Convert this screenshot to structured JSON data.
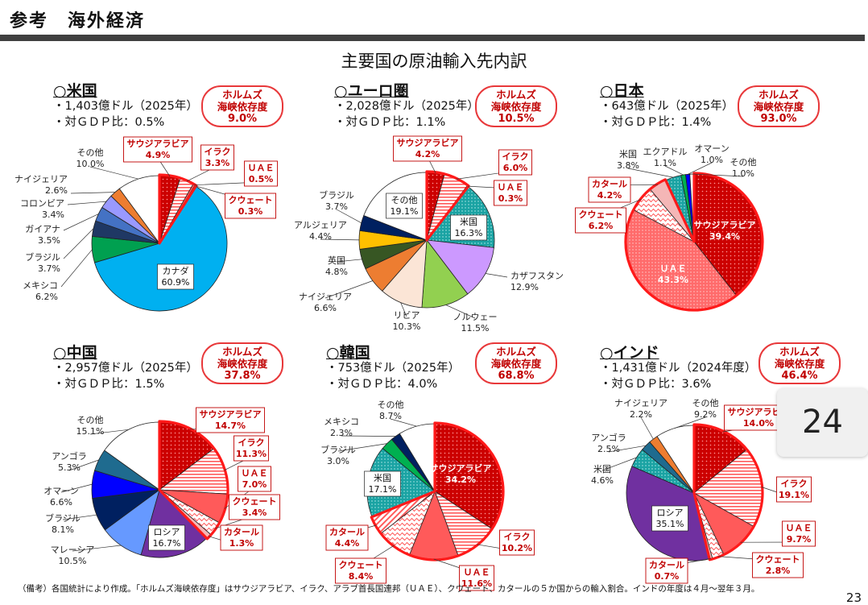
{
  "header": {
    "label": "参考　海外経済"
  },
  "main_title": "主要国の原油輸入先内訳",
  "hormuz_label_1": "ホルムズ",
  "hormuz_label_2": "海峡依存度",
  "footnote": "（備考）各国統計により作成。「ホルムズ海峡依存度」はサウジアラビア、イラク、アラブ首長国連邦（ＵＡＥ）、クウェート、カタールの５か国からの輸入割合。インドの年度は４月～翌年３月。",
  "page_number": "23",
  "overlay_number": "24",
  "colors": {
    "hormuz_red": "#e8383a",
    "label_red": "#c00000",
    "header_bar": "#404040"
  },
  "panels": [
    {
      "name": "○米国",
      "line1": "・1,403億ドル（2025年）",
      "line2": "・対ＧＤＰ比：0.5%",
      "hormuz": "9.0%"
    },
    {
      "name": "○ユーロ圏",
      "line1": "・2,028億ドル（2025年）",
      "line2": "・対ＧＤＰ比：1.1%",
      "hormuz": "10.5%"
    },
    {
      "name": "○日本",
      "line1": "・643億ドル（2025年）",
      "line2": "・対ＧＤＰ比：1.4%",
      "hormuz": "93.0%"
    },
    {
      "name": "○中国",
      "line1": "・2,957億ドル（2025年）",
      "line2": "・対ＧＤＰ比：1.5%",
      "hormuz": "37.8%"
    },
    {
      "name": "○韓国",
      "line1": "・753億ドル（2025年）",
      "line2": "・対ＧＤＰ比：4.0%",
      "hormuz": "68.8%"
    },
    {
      "name": "○インド",
      "line1": "・1,431億ドル（2024年度）",
      "line2": "・対ＧＤＰ比：3.6%",
      "hormuz": "46.4%"
    }
  ],
  "chart_data": [
    {
      "type": "pie",
      "title": "米国",
      "slices": [
        {
          "name": "サウジアラビア",
          "value": 4.9,
          "label": "4.9%",
          "fill": "dotred",
          "hormuz": true
        },
        {
          "name": "イラク",
          "value": 3.3,
          "label": "3.3%",
          "fill": "stripered",
          "hormuz": true
        },
        {
          "name": "ＵＡＥ",
          "value": 0.5,
          "label": "0.5%",
          "fill": "#ff5a5a",
          "hormuz": true
        },
        {
          "name": "クウェート",
          "value": 0.3,
          "label": "0.3%",
          "fill": "#ff9a9a",
          "hormuz": true
        },
        {
          "name": "カナダ",
          "value": 60.9,
          "label": "60.9%",
          "fill": "#00b0f0"
        },
        {
          "name": "メキシコ",
          "value": 6.2,
          "label": "6.2%",
          "fill": "#00a050"
        },
        {
          "name": "ブラジル",
          "value": 3.7,
          "label": "3.7%",
          "fill": "#1f3864"
        },
        {
          "name": "ガイアナ",
          "value": 3.5,
          "label": "3.5%",
          "fill": "#4472c4"
        },
        {
          "name": "コロンビア",
          "value": 3.4,
          "label": "3.4%",
          "fill": "#9999ff"
        },
        {
          "name": "ナイジェリア",
          "value": 2.6,
          "label": "2.6%",
          "fill": "#ed7d31"
        },
        {
          "name": "その他",
          "value": 10.0,
          "label": "10.0%",
          "fill": "#ffffff"
        }
      ]
    },
    {
      "type": "pie",
      "title": "ユーロ圏",
      "slices": [
        {
          "name": "サウジアラビア",
          "value": 4.2,
          "label": "4.2%",
          "fill": "dotred",
          "hormuz": true
        },
        {
          "name": "イラク",
          "value": 6.0,
          "label": "6.0%",
          "fill": "stripered",
          "hormuz": true
        },
        {
          "name": "ＵＡＥ",
          "value": 0.3,
          "label": "0.3%",
          "fill": "#ff5a5a",
          "hormuz": true
        },
        {
          "name": "米国",
          "value": 16.3,
          "label": "16.3%",
          "fill": "dotteal"
        },
        {
          "name": "カザフスタン",
          "value": 12.9,
          "label": "12.9%",
          "fill": "#cc99ff"
        },
        {
          "name": "ノルウェー",
          "value": 11.5,
          "label": "11.5%",
          "fill": "#92d050"
        },
        {
          "name": "リビア",
          "value": 10.3,
          "label": "10.3%",
          "fill": "#fbe5d6"
        },
        {
          "name": "ナイジェリア",
          "value": 6.6,
          "label": "6.6%",
          "fill": "#ed7d31"
        },
        {
          "name": "英国",
          "value": 4.8,
          "label": "4.8%",
          "fill": "#375623"
        },
        {
          "name": "アルジェリア",
          "value": 4.4,
          "label": "4.4%",
          "fill": "#ffc000"
        },
        {
          "name": "ブラジル",
          "value": 3.7,
          "label": "3.7%",
          "fill": "#002060"
        },
        {
          "name": "その他",
          "value": 19.1,
          "label": "19.1%",
          "fill": "#ffffff"
        }
      ]
    },
    {
      "type": "pie",
      "title": "日本",
      "slices": [
        {
          "name": "サウジアラビア",
          "value": 39.4,
          "label": "39.4%",
          "fill": "dotred",
          "hormuz": true
        },
        {
          "name": "ＵＡＥ",
          "value": 43.3,
          "label": "43.3%",
          "fill": "dotpink",
          "hormuz": true
        },
        {
          "name": "クウェート",
          "value": 6.2,
          "label": "6.2%",
          "fill": "wavered",
          "hormuz": true
        },
        {
          "name": "カタール",
          "value": 4.2,
          "label": "4.2%",
          "fill": "#f4b6b6",
          "hormuz": true
        },
        {
          "name": "米国",
          "value": 3.8,
          "label": "3.8%",
          "fill": "dotteal"
        },
        {
          "name": "エクアドル",
          "value": 1.1,
          "label": "1.1%",
          "fill": "#00b050"
        },
        {
          "name": "オマーン",
          "value": 1.0,
          "label": "1.0%",
          "fill": "#0000ff"
        },
        {
          "name": "その他",
          "value": 1.0,
          "label": "1.0%",
          "fill": "#ffffff"
        }
      ]
    },
    {
      "type": "pie",
      "title": "中国",
      "slices": [
        {
          "name": "サウジアラビア",
          "value": 14.7,
          "label": "14.7%",
          "fill": "dotred",
          "hormuz": true
        },
        {
          "name": "イラク",
          "value": 11.3,
          "label": "11.3%",
          "fill": "stripered",
          "hormuz": true
        },
        {
          "name": "ＵＡＥ",
          "value": 7.0,
          "label": "7.0%",
          "fill": "#ff5a5a",
          "hormuz": true
        },
        {
          "name": "クウェート",
          "value": 3.4,
          "label": "3.4%",
          "fill": "wavered",
          "hormuz": true
        },
        {
          "name": "カタール",
          "value": 1.3,
          "label": "1.3%",
          "fill": "#f4b6b6",
          "hormuz": true
        },
        {
          "name": "ロシア",
          "value": 16.7,
          "label": "16.7%",
          "fill": "#7030a0"
        },
        {
          "name": "マレーシア",
          "value": 10.5,
          "label": "10.5%",
          "fill": "#6699ff"
        },
        {
          "name": "ブラジル",
          "value": 8.1,
          "label": "8.1%",
          "fill": "#002060"
        },
        {
          "name": "オマーン",
          "value": 6.6,
          "label": "6.6%",
          "fill": "#0000ff"
        },
        {
          "name": "アンゴラ",
          "value": 5.3,
          "label": "5.3%",
          "fill": "#1f6b8f"
        },
        {
          "name": "その他",
          "value": 15.1,
          "label": "15.1%",
          "fill": "#ffffff"
        }
      ]
    },
    {
      "type": "pie",
      "title": "韓国",
      "slices": [
        {
          "name": "サウジアラビア",
          "value": 34.2,
          "label": "34.2%",
          "fill": "dotred",
          "hormuz": true
        },
        {
          "name": "イラク",
          "value": 10.2,
          "label": "10.2%",
          "fill": "stripered",
          "hormuz": true
        },
        {
          "name": "ＵＡＥ",
          "value": 11.6,
          "label": "11.6%",
          "fill": "#ff5a5a",
          "hormuz": true
        },
        {
          "name": "クウェート",
          "value": 8.4,
          "label": "8.4%",
          "fill": "wavered",
          "hormuz": true
        },
        {
          "name": "カタール",
          "value": 4.4,
          "label": "4.4%",
          "fill": "diagred",
          "hormuz": true
        },
        {
          "name": "米国",
          "value": 17.1,
          "label": "17.1%",
          "fill": "dotteal"
        },
        {
          "name": "ブラジル",
          "value": 3.0,
          "label": "3.0%",
          "fill": "#00b050"
        },
        {
          "name": "メキシコ",
          "value": 2.3,
          "label": "2.3%",
          "fill": "#002060"
        },
        {
          "name": "その他",
          "value": 8.7,
          "label": "8.7%",
          "fill": "#ffffff"
        }
      ]
    },
    {
      "type": "pie",
      "title": "インド",
      "slices": [
        {
          "name": "サウジアラビア",
          "value": 14.0,
          "label": "14.0%",
          "fill": "dotred",
          "hormuz": true
        },
        {
          "name": "イラク",
          "value": 19.1,
          "label": "19.1%",
          "fill": "stripered",
          "hormuz": true
        },
        {
          "name": "ＵＡＥ",
          "value": 9.7,
          "label": "9.7%",
          "fill": "#ff5a5a",
          "hormuz": true
        },
        {
          "name": "クウェート",
          "value": 2.8,
          "label": "2.8%",
          "fill": "wavered",
          "hormuz": true
        },
        {
          "name": "カタール",
          "value": 0.7,
          "label": "0.7%",
          "fill": "#f4b6b6",
          "hormuz": true
        },
        {
          "name": "ロシア",
          "value": 35.1,
          "label": "35.1%",
          "fill": "#7030a0"
        },
        {
          "name": "米国",
          "value": 4.6,
          "label": "4.6%",
          "fill": "dotteal"
        },
        {
          "name": "アンゴラ",
          "value": 2.5,
          "label": "2.5%",
          "fill": "#1f6b8f"
        },
        {
          "name": "ナイジェリア",
          "value": 2.2,
          "label": "2.2%",
          "fill": "#ed7d31"
        },
        {
          "name": "その他",
          "value": 9.2,
          "label": "9.2%",
          "fill": "#ffffff"
        }
      ]
    }
  ]
}
